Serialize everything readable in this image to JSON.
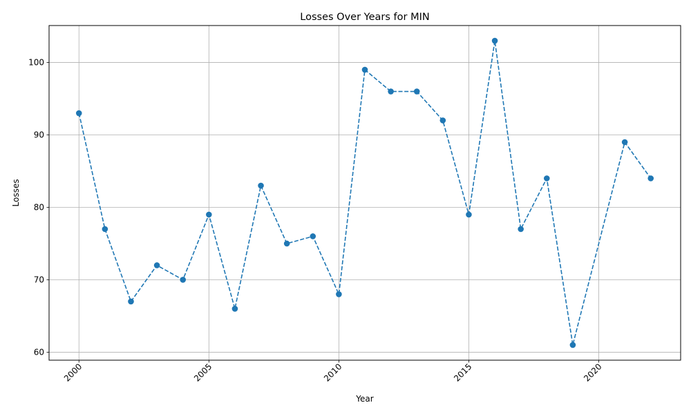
{
  "chart_data": {
    "type": "line",
    "title": "Losses Over Years for MIN",
    "xlabel": "Year",
    "ylabel": "Losses",
    "x": [
      2000,
      2001,
      2002,
      2003,
      2004,
      2005,
      2006,
      2007,
      2008,
      2009,
      2010,
      2011,
      2012,
      2013,
      2014,
      2015,
      2016,
      2017,
      2018,
      2019,
      2021,
      2022
    ],
    "series": [
      {
        "values": [
          93,
          77,
          67,
          72,
          70,
          79,
          66,
          83,
          75,
          76,
          68,
          99,
          96,
          96,
          92,
          79,
          103,
          77,
          84,
          61,
          89,
          84
        ],
        "color": "#1f77b4",
        "line_style": "dashed",
        "marker": "circle"
      }
    ],
    "xticks": [
      "2000",
      "2005",
      "2010",
      "2015",
      "2020"
    ],
    "yticks": [
      "60",
      "70",
      "80",
      "90",
      "100"
    ],
    "xlim": [
      1998.85,
      2023.15
    ],
    "ylim": [
      58.9,
      105.1
    ],
    "grid": true,
    "x_tick_rotation": 45
  }
}
